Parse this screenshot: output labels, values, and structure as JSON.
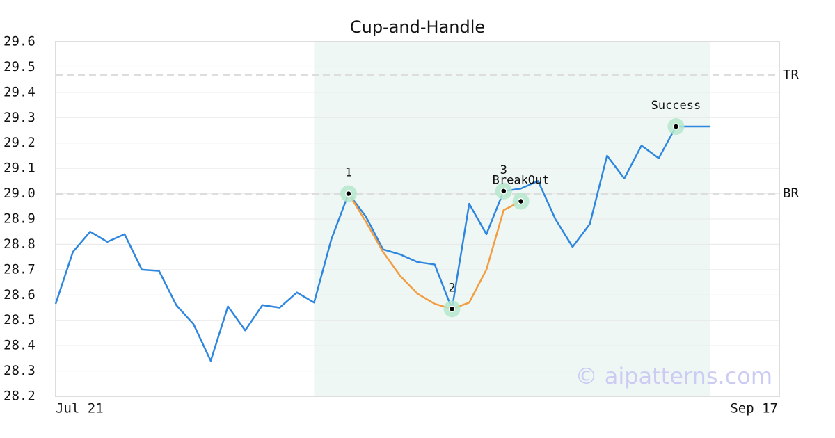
{
  "chart_data": {
    "type": "line",
    "title": "Cup-and-Handle",
    "categories": [
      "Jul 21",
      null,
      null,
      null,
      null,
      null,
      null,
      null,
      null,
      null,
      null,
      null,
      null,
      null,
      null,
      null,
      null,
      null,
      null,
      null,
      null,
      null,
      null,
      null,
      null,
      null,
      null,
      null,
      null,
      null,
      null,
      null,
      null,
      null,
      null,
      null,
      null,
      null,
      null,
      null,
      null,
      null,
      "Sep 17"
    ],
    "series": [
      {
        "color": "#2e86de",
        "values": [
          28.565,
          28.77,
          28.85,
          28.81,
          28.84,
          28.7,
          28.695,
          28.56,
          28.485,
          28.34,
          28.555,
          28.46,
          28.56,
          28.55,
          28.61,
          28.57,
          28.82,
          29.0,
          28.91,
          28.78,
          28.76,
          28.73,
          28.72,
          28.545,
          28.96,
          28.84,
          29.01,
          29.02,
          29.05,
          28.9,
          28.79,
          28.88,
          29.15,
          29.06,
          29.19,
          29.14,
          29.265,
          29.265,
          29.265,
          null,
          null,
          null,
          null
        ]
      },
      {
        "color": "#f39c40",
        "values": [
          null,
          null,
          null,
          null,
          null,
          null,
          null,
          null,
          null,
          null,
          null,
          null,
          null,
          null,
          null,
          null,
          null,
          29.0,
          28.89,
          28.77,
          28.675,
          28.605,
          28.565,
          28.545,
          28.57,
          28.7,
          28.935,
          28.97,
          null,
          null,
          null,
          null,
          null,
          null,
          null,
          null,
          null,
          null,
          null,
          null,
          null,
          null,
          null
        ]
      }
    ],
    "ylim": [
      28.2,
      29.6
    ],
    "yticks": [
      28.2,
      28.3,
      28.4,
      28.5,
      28.6,
      28.7,
      28.8,
      28.9,
      {
        "value": 29,
        "label": "29.0"
      },
      29.1,
      29.2,
      29.3,
      29.4,
      29.5,
      29.6
    ],
    "grid": true,
    "shade": [
      15,
      38
    ],
    "hlines": [
      {
        "label": "TR",
        "value": 29.468
      },
      {
        "label": "BR",
        "value": 29.0
      }
    ],
    "annotations": [
      {
        "label": "1",
        "x": 17,
        "value": 29.0
      },
      {
        "label": "2",
        "x": 23,
        "value": 28.545
      },
      {
        "label": "3",
        "x": 26,
        "value": 29.01
      },
      {
        "label": "BreakOut",
        "x": 27,
        "value": 28.97
      },
      {
        "label": "Success",
        "x": 36,
        "value": 29.265
      }
    ],
    "watermark": "© aipatterns.com"
  }
}
